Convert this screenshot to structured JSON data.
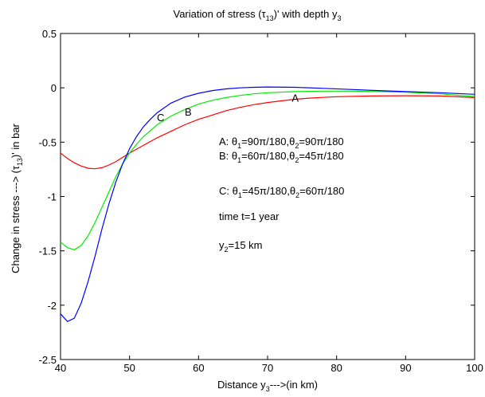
{
  "chart_data": {
    "type": "line",
    "title": {
      "main": "Variation of stress (τ",
      "sub1": "13",
      "mid": ")' with depth y",
      "sub2": "3"
    },
    "xlabel": {
      "main": "Distance y",
      "sub": "3",
      "tail": "--->(in km)"
    },
    "ylabel": {
      "main": "Change in stress ---> (τ",
      "sub": "13",
      "tail": ")' in bar"
    },
    "xlim": [
      40,
      100
    ],
    "ylim": [
      -2.5,
      0.5
    ],
    "xticks": [
      40,
      50,
      60,
      70,
      80,
      90,
      100
    ],
    "yticks": [
      -2.5,
      -2,
      -1.5,
      -1,
      -0.5,
      0,
      0.5
    ],
    "xtick_labels": [
      "40",
      "50",
      "60",
      "70",
      "80",
      "90",
      "100"
    ],
    "ytick_labels": [
      "-2.5",
      "-2",
      "-1.5",
      "-1",
      "-0.5",
      "0",
      "0.5"
    ],
    "grid": false,
    "series": [
      {
        "name": "A",
        "color": "#ff0000",
        "x": [
          40,
          41,
          42,
          43,
          44,
          45,
          46,
          47,
          48,
          49,
          50,
          52,
          54,
          56,
          58,
          60,
          62,
          64,
          66,
          68,
          70,
          72,
          74,
          76,
          78,
          80,
          85,
          90,
          95,
          100
        ],
        "y": [
          -0.6,
          -0.65,
          -0.69,
          -0.72,
          -0.74,
          -0.745,
          -0.735,
          -0.71,
          -0.68,
          -0.64,
          -0.6,
          -0.53,
          -0.46,
          -0.4,
          -0.34,
          -0.29,
          -0.25,
          -0.21,
          -0.18,
          -0.155,
          -0.135,
          -0.12,
          -0.105,
          -0.095,
          -0.088,
          -0.082,
          -0.075,
          -0.073,
          -0.075,
          -0.09
        ],
        "label": {
          "text": "A",
          "x": 74,
          "y": -0.09
        }
      },
      {
        "name": "B",
        "color": "#00ee00",
        "x": [
          40,
          41,
          42,
          43,
          44,
          45,
          46,
          47,
          48,
          49,
          50,
          51,
          52,
          54,
          56,
          58,
          60,
          62,
          64,
          66,
          68,
          70,
          74,
          78,
          82,
          86,
          90,
          95,
          100
        ],
        "y": [
          -1.42,
          -1.47,
          -1.49,
          -1.45,
          -1.36,
          -1.24,
          -1.1,
          -0.96,
          -0.82,
          -0.7,
          -0.6,
          -0.52,
          -0.45,
          -0.34,
          -0.26,
          -0.2,
          -0.15,
          -0.115,
          -0.09,
          -0.07,
          -0.055,
          -0.045,
          -0.035,
          -0.03,
          -0.03,
          -0.035,
          -0.04,
          -0.055,
          -0.08
        ],
        "label": {
          "text": "B",
          "x": 58.5,
          "y": -0.22
        }
      },
      {
        "name": "C",
        "color": "#0000ff",
        "x": [
          40,
          41,
          42,
          43,
          44,
          45,
          46,
          47,
          48,
          49,
          50,
          51,
          52,
          53,
          54,
          56,
          58,
          60,
          62,
          64,
          66,
          68,
          70,
          74,
          78,
          82,
          86,
          90,
          95,
          100
        ],
        "y": [
          -2.08,
          -2.15,
          -2.12,
          -1.98,
          -1.78,
          -1.55,
          -1.3,
          -1.07,
          -0.87,
          -0.7,
          -0.56,
          -0.45,
          -0.36,
          -0.29,
          -0.23,
          -0.14,
          -0.085,
          -0.05,
          -0.025,
          -0.01,
          0.0,
          0.005,
          0.008,
          0.005,
          -0.005,
          -0.015,
          -0.025,
          -0.035,
          -0.045,
          -0.06
        ],
        "label": {
          "text": "C",
          "x": 54.5,
          "y": -0.27
        }
      }
    ],
    "annotations": [
      {
        "label": "A: ",
        "parts": [
          [
            "θ",
            "1",
            "=90π/180,"
          ],
          [
            "θ",
            "2",
            "=90π/180"
          ]
        ]
      },
      {
        "label": "B: ",
        "parts": [
          [
            "θ",
            "1",
            "=60π/180,"
          ],
          [
            "θ",
            "2",
            "=45π/180"
          ]
        ]
      },
      {
        "label": "C: ",
        "parts": [
          [
            "θ",
            "1",
            "=45π/180,"
          ],
          [
            "θ",
            "2",
            "=60π/180"
          ]
        ]
      }
    ],
    "notes": [
      "time t=1 year"
    ],
    "depth_note": {
      "main": "y",
      "sub": "2",
      "tail": "=15 km"
    }
  }
}
